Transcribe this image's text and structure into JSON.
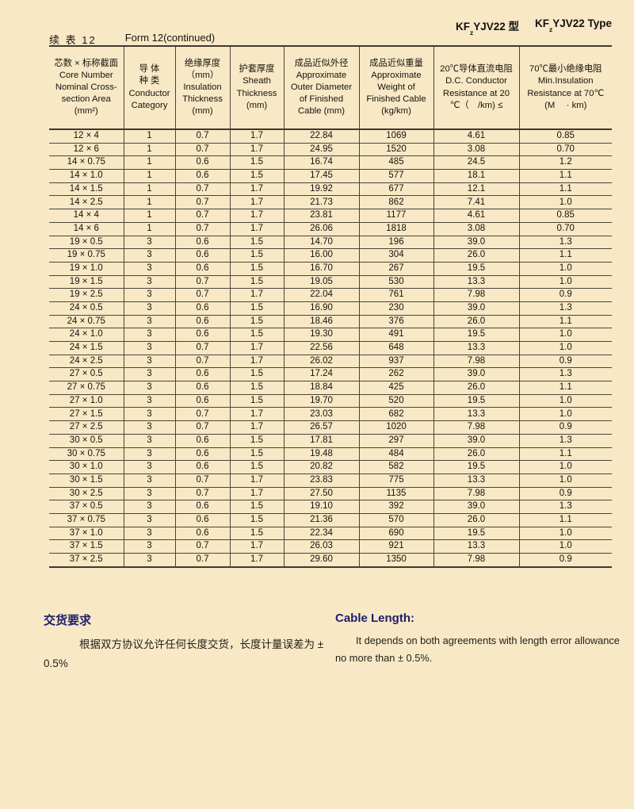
{
  "header": {
    "model_cn": {
      "pre": "KF",
      "sub": "z",
      "post": "YJV22 型"
    },
    "model_en": {
      "pre": "KF",
      "sub": "z",
      "post": "YJV22 Type"
    }
  },
  "caption": {
    "cn": "续 表 12",
    "en": "Form 12(continued)"
  },
  "table": {
    "columns": [
      {
        "name": "core-number-nominal-cross-section",
        "lines": [
          "芯数 × 标称截面",
          "Core Number",
          "Nominal Cross-",
          "section Area",
          "(mm²)"
        ]
      },
      {
        "name": "conductor-category",
        "lines": [
          "导 体",
          "种 类",
          "Conductor",
          "Category"
        ]
      },
      {
        "name": "insulation-thickness",
        "lines": [
          "绝缘厚度",
          "（mm）",
          "Insulation",
          "Thickness",
          "(mm)"
        ]
      },
      {
        "name": "sheath-thickness",
        "lines": [
          "护套厚度",
          "Sheath",
          "Thickness",
          "(mm)"
        ]
      },
      {
        "name": "approximate-outer-diameter",
        "lines": [
          "成品近似外径",
          "Approximate",
          "Outer Diameter",
          "of Finished",
          "Cable (mm)"
        ]
      },
      {
        "name": "approximate-weight",
        "lines": [
          "成品近似重量",
          "Approximate",
          "Weight of",
          "Finished Cable",
          "(kg/km)"
        ]
      },
      {
        "name": "dc-conductor-resistance",
        "lines": [
          "20℃导体直流电阻",
          "D.C. Conductor",
          "Resistance at 20",
          "℃（　/km) ≤"
        ]
      },
      {
        "name": "min-insulation-resistance",
        "lines": [
          "70℃最小绝缘电阻",
          "Min.Insulation",
          "Resistance at 70℃",
          "(M　 · km)"
        ]
      }
    ],
    "rows": [
      [
        "12 × 4",
        "1",
        "0.7",
        "1.7",
        "22.84",
        "1069",
        "4.61",
        "0.85"
      ],
      [
        "12 × 6",
        "1",
        "0.7",
        "1.7",
        "24.95",
        "1520",
        "3.08",
        "0.70"
      ],
      [
        "14 × 0.75",
        "1",
        "0.6",
        "1.5",
        "16.74",
        "485",
        "24.5",
        "1.2"
      ],
      [
        "14 × 1.0",
        "1",
        "0.6",
        "1.5",
        "17.45",
        "577",
        "18.1",
        "1.1"
      ],
      [
        "14 × 1.5",
        "1",
        "0.7",
        "1.7",
        "19.92",
        "677",
        "12.1",
        "1.1"
      ],
      [
        "14 × 2.5",
        "1",
        "0.7",
        "1.7",
        "21.73",
        "862",
        "7.41",
        "1.0"
      ],
      [
        "14 × 4",
        "1",
        "0.7",
        "1.7",
        "23.81",
        "1177",
        "4.61",
        "0.85"
      ],
      [
        "14 × 6",
        "1",
        "0.7",
        "1.7",
        "26.06",
        "1818",
        "3.08",
        "0.70"
      ],
      [
        "19 × 0.5",
        "3",
        "0.6",
        "1.5",
        "14.70",
        "196",
        "39.0",
        "1.3"
      ],
      [
        "19 × 0.75",
        "3",
        "0.6",
        "1.5",
        "16.00",
        "304",
        "26.0",
        "1.1"
      ],
      [
        "19 × 1.0",
        "3",
        "0.6",
        "1.5",
        "16.70",
        "267",
        "19.5",
        "1.0"
      ],
      [
        "19 × 1.5",
        "3",
        "0.7",
        "1.5",
        "19.05",
        "530",
        "13.3",
        "1.0"
      ],
      [
        "19 × 2.5",
        "3",
        "0.7",
        "1.7",
        "22.04",
        "761",
        "7.98",
        "0.9"
      ],
      [
        "24 × 0.5",
        "3",
        "0.6",
        "1.5",
        "16.90",
        "230",
        "39.0",
        "1.3"
      ],
      [
        "24 × 0.75",
        "3",
        "0.6",
        "1.5",
        "18.46",
        "376",
        "26.0",
        "1.1"
      ],
      [
        "24 × 1.0",
        "3",
        "0.6",
        "1.5",
        "19.30",
        "491",
        "19.5",
        "1.0"
      ],
      [
        "24 × 1.5",
        "3",
        "0.7",
        "1.7",
        "22.56",
        "648",
        "13.3",
        "1.0"
      ],
      [
        "24 × 2.5",
        "3",
        "0.7",
        "1.7",
        "26.02",
        "937",
        "7.98",
        "0.9"
      ],
      [
        "27 × 0.5",
        "3",
        "0.6",
        "1.5",
        "17.24",
        "262",
        "39.0",
        "1.3"
      ],
      [
        "27 × 0.75",
        "3",
        "0.6",
        "1.5",
        "18.84",
        "425",
        "26.0",
        "1.1"
      ],
      [
        "27 × 1.0",
        "3",
        "0.6",
        "1.5",
        "19.70",
        "520",
        "19.5",
        "1.0"
      ],
      [
        "27 × 1.5",
        "3",
        "0.7",
        "1.7",
        "23.03",
        "682",
        "13.3",
        "1.0"
      ],
      [
        "27 × 2.5",
        "3",
        "0.7",
        "1.7",
        "26.57",
        "1020",
        "7.98",
        "0.9"
      ],
      [
        "30 × 0.5",
        "3",
        "0.6",
        "1.5",
        "17.81",
        "297",
        "39.0",
        "1.3"
      ],
      [
        "30 × 0.75",
        "3",
        "0.6",
        "1.5",
        "19.48",
        "484",
        "26.0",
        "1.1"
      ],
      [
        "30 × 1.0",
        "3",
        "0.6",
        "1.5",
        "20.82",
        "582",
        "19.5",
        "1.0"
      ],
      [
        "30 × 1.5",
        "3",
        "0.7",
        "1.7",
        "23.83",
        "775",
        "13.3",
        "1.0"
      ],
      [
        "30 × 2.5",
        "3",
        "0.7",
        "1.7",
        "27.50",
        "1135",
        "7.98",
        "0.9"
      ],
      [
        "37 × 0.5",
        "3",
        "0.6",
        "1.5",
        "19.10",
        "392",
        "39.0",
        "1.3"
      ],
      [
        "37 × 0.75",
        "3",
        "0.6",
        "1.5",
        "21.36",
        "570",
        "26.0",
        "1.1"
      ],
      [
        "37 × 1.0",
        "3",
        "0.6",
        "1.5",
        "22.34",
        "690",
        "19.5",
        "1.0"
      ],
      [
        "37 × 1.5",
        "3",
        "0.7",
        "1.7",
        "26.03",
        "921",
        "13.3",
        "1.0"
      ],
      [
        "37 × 2.5",
        "3",
        "0.7",
        "1.7",
        "29.60",
        "1350",
        "7.98",
        "0.9"
      ]
    ]
  },
  "notes": {
    "heading_cn": "交货要求",
    "cn_line1": "根据双方协议允许任何长度交货，长度计量误差为 ±",
    "cn_line2": "0.5%",
    "heading_en": "Cable Length:",
    "en_line1": "It depends on both agreements with length error allowance",
    "en_line2": "no more than ± 0.5%."
  },
  "colors": {
    "page_background": "#f8e8c5",
    "table_line": "#4a4539",
    "text": "#16140f",
    "note_heading": "#1d1d6f"
  }
}
